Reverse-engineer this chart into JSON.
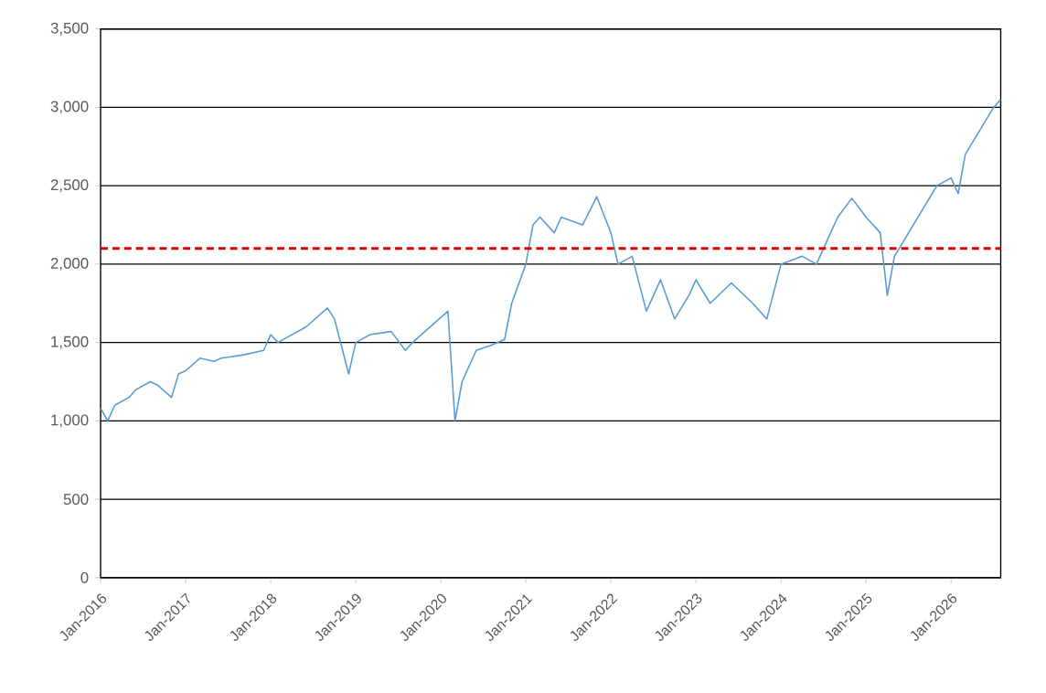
{
  "chart_data": {
    "type": "line",
    "x": [
      "2016-01",
      "2016-02",
      "2016-03",
      "2016-05",
      "2016-06",
      "2016-08",
      "2016-09",
      "2016-11",
      "2016-12",
      "2017-01",
      "2017-03",
      "2017-05",
      "2017-06",
      "2017-09",
      "2017-12",
      "2018-01",
      "2018-02",
      "2018-04",
      "2018-06",
      "2018-09",
      "2018-10",
      "2018-12",
      "2019-01",
      "2019-03",
      "2019-06",
      "2019-08",
      "2019-09",
      "2019-12",
      "2020-02",
      "2020-03",
      "2020-04",
      "2020-06",
      "2020-08",
      "2020-10",
      "2020-11",
      "2021-01",
      "2021-02",
      "2021-03",
      "2021-05",
      "2021-06",
      "2021-09",
      "2021-11",
      "2022-01",
      "2022-02",
      "2022-04",
      "2022-06",
      "2022-08",
      "2022-10",
      "2022-12",
      "2023-01",
      "2023-03",
      "2023-06",
      "2023-09",
      "2023-11",
      "2024-01",
      "2024-04",
      "2024-06",
      "2024-09",
      "2024-11",
      "2025-01",
      "2025-03",
      "2025-04",
      "2025-05",
      "2025-07",
      "2025-09",
      "2025-11",
      "2026-01",
      "2026-02",
      "2026-03",
      "2026-05",
      "2026-07",
      "2026-08"
    ],
    "series": [
      {
        "color": "#5b9bd5",
        "values": [
          1080,
          1000,
          1100,
          1150,
          1200,
          1250,
          1230,
          1150,
          1300,
          1320,
          1400,
          1380,
          1400,
          1420,
          1450,
          1550,
          1500,
          1550,
          1600,
          1720,
          1650,
          1300,
          1500,
          1550,
          1570,
          1450,
          1500,
          1620,
          1700,
          1000,
          1250,
          1450,
          1480,
          1520,
          1750,
          2000,
          2250,
          2300,
          2200,
          2300,
          2250,
          2430,
          2200,
          2000,
          2050,
          1700,
          1900,
          1650,
          1800,
          1900,
          1750,
          1880,
          1750,
          1650,
          2000,
          2050,
          2000,
          2300,
          2420,
          2300,
          2200,
          1800,
          2050,
          2200,
          2350,
          2500,
          2550,
          2450,
          2700,
          2850,
          3000,
          3050
        ]
      }
    ],
    "xlim": [
      "2016-01",
      "2026-08"
    ],
    "xticks": [
      {
        "value": "2016-01",
        "label": "Jan-2016"
      },
      {
        "value": "2017-01",
        "label": "Jan-2017"
      },
      {
        "value": "2018-01",
        "label": "Jan-2018"
      },
      {
        "value": "2019-01",
        "label": "Jan-2019"
      },
      {
        "value": "2020-01",
        "label": "Jan-2020"
      },
      {
        "value": "2021-01",
        "label": "Jan-2021"
      },
      {
        "value": "2022-01",
        "label": "Jan-2022"
      },
      {
        "value": "2023-01",
        "label": "Jan-2023"
      },
      {
        "value": "2024-01",
        "label": "Jan-2024"
      },
      {
        "value": "2025-01",
        "label": "Jan-2025"
      },
      {
        "value": "2026-01",
        "label": "Jan-2026"
      }
    ],
    "ylim": [
      0,
      3500
    ],
    "yticks": [
      {
        "value": 0,
        "label": "0"
      },
      {
        "value": 500,
        "label": "500"
      },
      {
        "value": 1000,
        "label": "1,000"
      },
      {
        "value": 1500,
        "label": "1,500"
      },
      {
        "value": 2000,
        "label": "2,000"
      },
      {
        "value": 2500,
        "label": "2,500"
      },
      {
        "value": 3000,
        "label": "3,000"
      },
      {
        "value": 3500,
        "label": "3,500"
      }
    ],
    "grid": "y",
    "ref_lines": [
      {
        "axis": "y",
        "value": 2100,
        "color": "#e00000",
        "line_style": "dashed"
      }
    ]
  }
}
